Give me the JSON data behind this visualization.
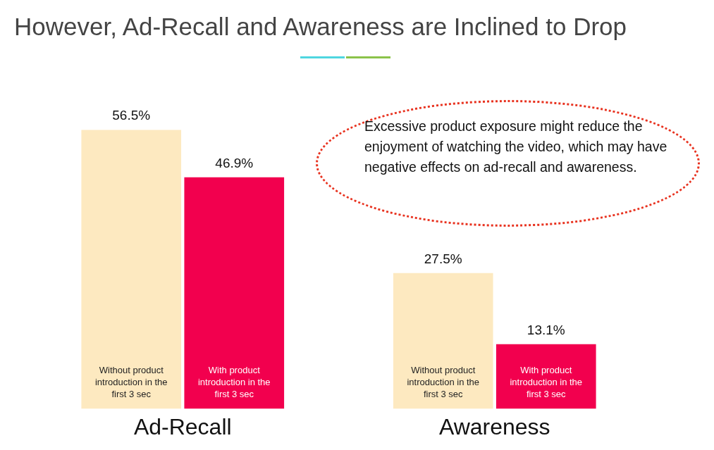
{
  "chart_data": {
    "type": "bar",
    "title": "However, Ad-Recall and Awareness are Inclined to Drop",
    "categories": [
      "Ad-Recall",
      "Awareness"
    ],
    "series": [
      {
        "name": "Without product introduction in the first 3 sec",
        "color": "#fde9c0",
        "values": [
          56.5,
          27.5
        ],
        "value_labels": [
          "56.5%",
          "27.5%"
        ]
      },
      {
        "name": "With product introduction in the first 3 sec",
        "color": "#f2004e",
        "values": [
          46.9,
          13.1
        ],
        "value_labels": [
          "46.9%",
          "13.1%"
        ]
      }
    ],
    "annotations": [
      "Excessive product exposure might reduce the enjoyment of watching the video, which may have negative effects on ad-recall and awareness."
    ],
    "relative": false,
    "grid": false,
    "legend": false
  }
}
